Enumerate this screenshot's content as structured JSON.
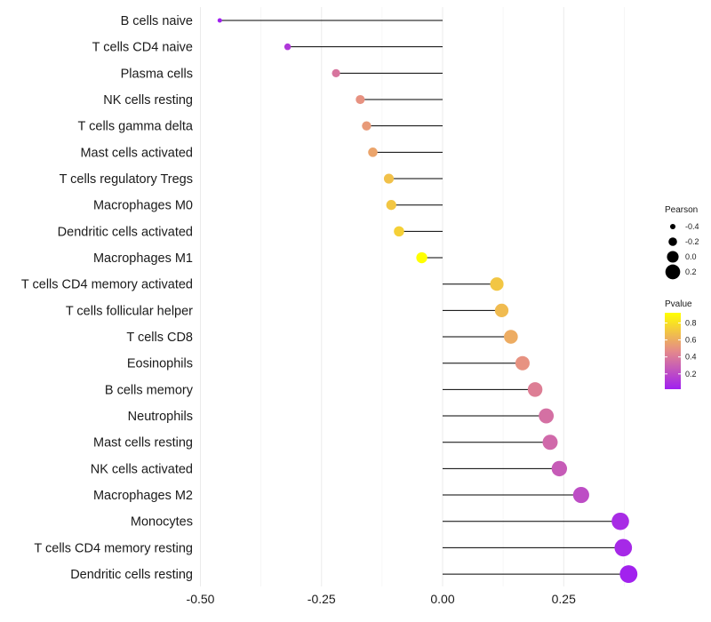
{
  "chart_data": {
    "type": "lollipop",
    "xlim": [
      -0.5,
      0.4
    ],
    "x_ticks": [
      -0.5,
      -0.25,
      0.0,
      0.25
    ],
    "x_tick_labels": [
      "-0.50",
      "-0.25",
      "0.00",
      "0.25"
    ],
    "categories": [
      "B cells naive",
      "T cells CD4 naive",
      "Plasma cells",
      "NK cells resting",
      "T cells gamma delta",
      "Mast cells activated",
      "T cells regulatory  Tregs",
      "Macrophages M0",
      "Dendritic cells activated",
      "Macrophages M1",
      "T cells CD4 memory activated",
      "T cells follicular helper",
      "T cells CD8",
      "Eosinophils",
      "B cells memory",
      "Neutrophils",
      "Mast cells resting",
      "NK cells activated",
      "Macrophages M2",
      "Monocytes",
      "T cells CD4 memory resting",
      "Dendritic cells resting"
    ],
    "pearson": [
      -0.46,
      -0.32,
      -0.22,
      -0.17,
      -0.157,
      -0.144,
      -0.111,
      -0.106,
      -0.09,
      -0.043,
      0.112,
      0.122,
      0.141,
      0.165,
      0.191,
      0.214,
      0.222,
      0.241,
      0.286,
      0.367,
      0.373,
      0.384
    ],
    "pvalue": [
      0.02,
      0.12,
      0.38,
      0.5,
      0.53,
      0.57,
      0.68,
      0.7,
      0.74,
      0.92,
      0.7,
      0.66,
      0.6,
      0.5,
      0.42,
      0.36,
      0.33,
      0.27,
      0.21,
      0.07,
      0.06,
      0.03
    ],
    "legend_size": {
      "title": "Pearson",
      "values": [
        -0.4,
        -0.2,
        0.0,
        0.2
      ],
      "labels": [
        "-0.4",
        "-0.2",
        "0.0",
        "0.2"
      ]
    },
    "legend_color": {
      "title": "Pvalue",
      "range": [
        0.02,
        0.92
      ],
      "ticks": [
        0.2,
        0.4,
        0.6,
        0.8
      ],
      "labels": [
        "0.2",
        "0.4",
        "0.6",
        "0.8"
      ],
      "low_color": "#a020f0",
      "mid_color": "#e58a8a",
      "high_color": "#ffff00"
    },
    "grid": "vertical",
    "legend_position": "right"
  }
}
